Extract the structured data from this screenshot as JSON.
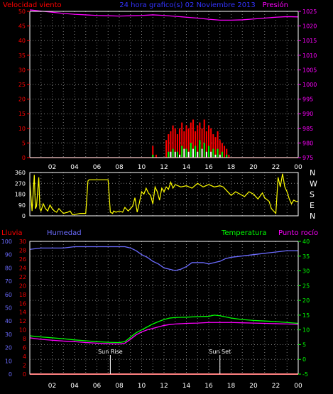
{
  "colors": {
    "background": "#000000",
    "grid": "#7f7f7f",
    "frame": "#ffffff",
    "wind": "#ff0000",
    "wind_gust": "#ff0000",
    "wind_avg": "#00ff00",
    "wind_min": "#ffffff",
    "pressure": "#ff00ff",
    "direction": "#ffff00",
    "rain": "#ff0000",
    "humidity": "#6b6bff",
    "temperature": "#00ff00",
    "dewpoint": "#ff00ff",
    "sun_text": "#ffffff"
  },
  "chart_data": [
    {
      "type": "line",
      "title": "24 hora grafico(s) 02 Noviembre 2013",
      "left_axis_label": "Velocidad viento",
      "right_axis_label": "Presión",
      "left_ticks": [
        "0",
        "5",
        "10",
        "15",
        "20",
        "25",
        "30",
        "35",
        "40",
        "45",
        "50"
      ],
      "left_range": [
        0,
        50
      ],
      "right_ticks": [
        "975",
        "980",
        "985",
        "990",
        "995",
        "1000",
        "1005",
        "1010",
        "1015",
        "1020",
        "1025"
      ],
      "right_range": [
        975,
        1025
      ],
      "x_ticks": [
        "02",
        "04",
        "06",
        "08",
        "10",
        "12",
        "14",
        "16",
        "18",
        "20",
        "22",
        "00"
      ],
      "x_range_hours": [
        0,
        24
      ],
      "grid": true,
      "series": [
        {
          "axis": "right",
          "style": "line",
          "color_key": "pressure",
          "x": [
            0,
            1,
            2,
            3,
            4,
            5,
            6,
            7,
            8,
            9,
            10,
            11,
            12,
            13,
            14,
            15,
            16,
            17,
            18,
            19,
            20,
            21,
            22,
            23,
            24
          ],
          "values": [
            1025.5,
            1025.1,
            1024.7,
            1024.3,
            1024.0,
            1023.8,
            1023.6,
            1023.5,
            1023.4,
            1023.5,
            1023.6,
            1023.8,
            1023.6,
            1023.3,
            1023.0,
            1022.7,
            1022.3,
            1022.0,
            1022.0,
            1022.1,
            1022.4,
            1022.7,
            1023.0,
            1023.2,
            1023.1
          ]
        },
        {
          "axis": "left",
          "style": "bars",
          "color_key": "wind_gust",
          "x": [
            11.0,
            11.3,
            12.2,
            12.4,
            12.6,
            12.8,
            13.0,
            13.2,
            13.4,
            13.6,
            13.8,
            14.0,
            14.2,
            14.4,
            14.6,
            14.8,
            15.0,
            15.2,
            15.4,
            15.6,
            15.8,
            16.0,
            16.2,
            16.4,
            16.6,
            16.8,
            17.0,
            17.2,
            17.4,
            17.6,
            17.8
          ],
          "values": [
            4,
            1,
            6,
            8,
            9,
            11,
            10,
            8,
            10,
            12,
            9,
            11,
            10,
            12,
            13,
            9,
            11,
            12,
            10,
            13,
            9,
            11,
            10,
            8,
            7,
            9,
            6,
            5,
            4,
            3,
            1
          ]
        },
        {
          "axis": "left",
          "style": "bars",
          "color_key": "wind_avg",
          "x": [
            11.0,
            12.4,
            12.8,
            13.2,
            13.6,
            14.0,
            14.4,
            14.8,
            15.2,
            15.6,
            16.0,
            16.4,
            16.8,
            17.2,
            17.6
          ],
          "values": [
            1,
            2,
            3,
            2,
            4,
            3,
            5,
            4,
            6,
            5,
            4,
            3,
            3,
            2,
            1
          ]
        },
        {
          "axis": "left",
          "style": "bars",
          "color_key": "wind_min",
          "x": [
            12.6,
            13.0,
            13.4,
            13.8,
            14.2,
            14.6,
            15.0,
            15.4,
            15.8,
            16.2,
            16.6,
            17.0
          ],
          "values": [
            2,
            2,
            1,
            3,
            2,
            3,
            2,
            3,
            2,
            2,
            1,
            1
          ]
        },
        {
          "axis": "left",
          "style": "line",
          "color_key": "wind",
          "x": [
            0,
            24
          ],
          "values": [
            0,
            0
          ]
        }
      ]
    },
    {
      "type": "line",
      "left_ticks": [
        "0",
        "90",
        "180",
        "270",
        "360"
      ],
      "left_range": [
        0,
        360
      ],
      "right_labels": [
        "N",
        "W",
        "S",
        "E",
        "N"
      ],
      "x_range_hours": [
        0,
        24
      ],
      "grid": true,
      "series": [
        {
          "name": "direction",
          "color_key": "direction",
          "x": [
            0,
            0.2,
            0.4,
            0.5,
            0.6,
            0.8,
            0.9,
            1.0,
            1.2,
            1.4,
            1.6,
            1.8,
            2.0,
            2.2,
            2.4,
            2.6,
            2.8,
            3.0,
            3.4,
            3.6,
            3.8,
            4.0,
            4.5,
            5.0,
            5.2,
            5.3,
            5.5,
            6.0,
            6.5,
            7.0,
            7.2,
            7.4,
            7.5,
            7.7,
            8.0,
            8.3,
            8.5,
            8.8,
            9.0,
            9.2,
            9.4,
            9.6,
            9.8,
            10.0,
            10.2,
            10.4,
            10.6,
            10.8,
            11.0,
            11.2,
            11.4,
            11.6,
            11.8,
            12.0,
            12.2,
            12.4,
            12.6,
            12.8,
            13.0,
            13.5,
            14.0,
            14.5,
            15.0,
            15.5,
            16.0,
            16.5,
            17.0,
            17.3,
            17.6,
            17.8,
            18.0,
            18.4,
            18.8,
            19.2,
            19.6,
            20.0,
            20.4,
            20.8,
            21.0,
            21.4,
            21.6,
            21.8,
            22.0,
            22.2,
            22.4,
            22.6,
            22.8,
            23.0,
            23.2,
            23.4,
            23.6,
            23.8,
            24.0
          ],
          "values": [
            280,
            40,
            340,
            60,
            80,
            320,
            60,
            40,
            100,
            60,
            40,
            90,
            60,
            40,
            30,
            60,
            40,
            20,
            30,
            40,
            10,
            10,
            20,
            20,
            290,
            300,
            300,
            300,
            300,
            300,
            30,
            20,
            40,
            30,
            40,
            30,
            70,
            40,
            60,
            80,
            150,
            30,
            110,
            200,
            180,
            230,
            190,
            170,
            100,
            240,
            200,
            130,
            230,
            200,
            240,
            220,
            280,
            230,
            260,
            240,
            250,
            230,
            270,
            240,
            260,
            240,
            250,
            240,
            210,
            190,
            170,
            200,
            180,
            160,
            200,
            180,
            140,
            190,
            150,
            120,
            60,
            40,
            20,
            320,
            240,
            350,
            240,
            200,
            140,
            100,
            130,
            120,
            120
          ]
        }
      ]
    },
    {
      "type": "line",
      "title_left": "Lluvia",
      "title_humidity": "Humedad",
      "title_temperature": "Temperatura",
      "title_dewpoint": "Punto rocío",
      "axis_humidity_ticks": [
        "0",
        "10",
        "20",
        "30",
        "40",
        "50",
        "60",
        "70",
        "80",
        "90",
        "100"
      ],
      "humidity_range": [
        0,
        100
      ],
      "axis_rain_ticks": [
        "0",
        "2",
        "4",
        "6",
        "8",
        "10",
        "12",
        "14",
        "16",
        "18",
        "20",
        "22",
        "24",
        "26",
        "28",
        "30"
      ],
      "rain_range": [
        0,
        30
      ],
      "axis_temp_ticks": [
        "-5",
        "0",
        "5",
        "10",
        "15",
        "20",
        "25",
        "30",
        "35",
        "40"
      ],
      "temp_range": [
        -5,
        40
      ],
      "x_ticks": [
        "02",
        "04",
        "06",
        "08",
        "10",
        "12",
        "14",
        "16",
        "18",
        "20",
        "22",
        "00"
      ],
      "x_range_hours": [
        0,
        24
      ],
      "grid": true,
      "sun_rise_label": "Sun Rise",
      "sun_set_label": "Sun Set",
      "sun_rise_hour": 7.2,
      "sun_set_hour": 17.0,
      "series": [
        {
          "name": "Humedad",
          "color_key": "humidity",
          "axis": "humidity",
          "x": [
            0,
            1,
            2,
            3,
            4,
            5,
            6,
            7,
            8,
            8.5,
            9,
            9.5,
            10,
            10.5,
            11,
            11.5,
            12,
            12.5,
            13,
            13.5,
            14,
            14.5,
            15,
            15.5,
            16,
            16.5,
            17,
            17.5,
            18,
            19,
            20,
            21,
            22,
            23,
            24
          ],
          "values": [
            94,
            95,
            95,
            95,
            96,
            96,
            96,
            96,
            96,
            96,
            95,
            93,
            90,
            88,
            85,
            83,
            80,
            79,
            78,
            79,
            81,
            84,
            84,
            84,
            83,
            84,
            85,
            87,
            88,
            89,
            90,
            91,
            92,
            93,
            93
          ]
        },
        {
          "name": "Temperatura",
          "color_key": "temperature",
          "axis": "temp",
          "x": [
            0,
            1,
            2,
            3,
            4,
            5,
            6,
            7,
            8,
            8.5,
            9,
            9.5,
            10,
            10.5,
            11,
            11.5,
            12,
            12.5,
            13,
            14,
            15,
            16,
            16.5,
            17,
            17.5,
            18,
            19,
            20,
            21,
            22,
            23,
            24
          ],
          "values": [
            8.0,
            7.6,
            7.3,
            7.0,
            6.6,
            6.3,
            6.0,
            5.8,
            5.7,
            6.0,
            7.5,
            9.0,
            10.0,
            11.0,
            12.0,
            12.8,
            13.5,
            14.0,
            14.2,
            14.3,
            14.5,
            14.6,
            15.0,
            14.8,
            14.4,
            14.0,
            13.5,
            13.2,
            13.0,
            12.8,
            12.5,
            12.2
          ]
        },
        {
          "name": "Punto rocío",
          "color_key": "dewpoint",
          "axis": "temp",
          "x": [
            0,
            1,
            2,
            3,
            4,
            5,
            6,
            7,
            8,
            8.5,
            9,
            9.5,
            10,
            10.5,
            11,
            11.5,
            12,
            12.5,
            13,
            14,
            15,
            16,
            17,
            18,
            19,
            20,
            21,
            22,
            23,
            24
          ],
          "values": [
            7.3,
            6.8,
            6.5,
            6.2,
            6.0,
            5.7,
            5.5,
            5.3,
            5.2,
            5.5,
            6.8,
            8.3,
            9.3,
            10.0,
            10.5,
            11.0,
            11.5,
            11.8,
            12.0,
            12.2,
            12.3,
            12.5,
            12.5,
            12.5,
            12.4,
            12.3,
            12.2,
            12.1,
            12.0,
            11.9
          ]
        },
        {
          "name": "Lluvia",
          "color_key": "rain",
          "axis": "rain",
          "x": [
            0,
            24
          ],
          "values": [
            0,
            0
          ]
        }
      ]
    }
  ]
}
